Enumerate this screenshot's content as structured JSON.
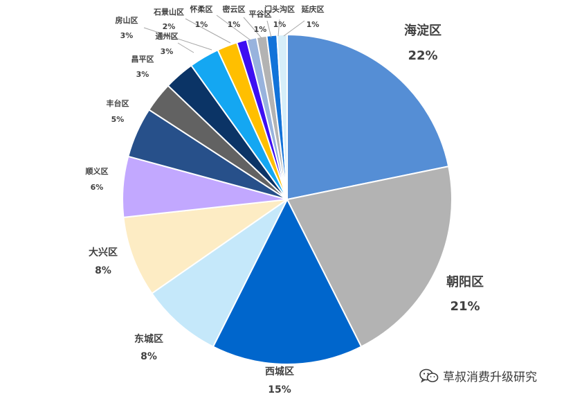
{
  "chart_data": {
    "type": "pie",
    "start_angle_deg": 0,
    "direction": "clockwise",
    "slices": [
      {
        "label": "海淀区",
        "value": 22,
        "pct_label": "22%",
        "color": "#558ed5"
      },
      {
        "label": "朝阳区",
        "value": 21,
        "pct_label": "21%",
        "color": "#b3b3b3"
      },
      {
        "label": "西城区",
        "value": 15,
        "pct_label": "15%",
        "color": "#0066cc"
      },
      {
        "label": "东城区",
        "value": 8,
        "pct_label": "8%",
        "color": "#c5e8fa"
      },
      {
        "label": "大兴区",
        "value": 8,
        "pct_label": "8%",
        "color": "#fdecc4"
      },
      {
        "label": "顺义区",
        "value": 6,
        "pct_label": "6%",
        "color": "#c2a8ff"
      },
      {
        "label": "丰台区",
        "value": 5,
        "pct_label": "5%",
        "color": "#27508a"
      },
      {
        "label": "昌平区",
        "value": 3,
        "pct_label": "3%",
        "color": "#626262"
      },
      {
        "label": "通州区",
        "value": 3,
        "pct_label": "3%",
        "color": "#0b3466"
      },
      {
        "label": "房山区",
        "value": 3,
        "pct_label": "3%",
        "color": "#14a7f2"
      },
      {
        "label": "石景山区",
        "value": 2,
        "pct_label": "2%",
        "color": "#ffbf00"
      },
      {
        "label": "怀柔区",
        "value": 1,
        "pct_label": "1%",
        "color": "#3d0ff2"
      },
      {
        "label": "密云区",
        "value": 1,
        "pct_label": "1%",
        "color": "#98b3dd"
      },
      {
        "label": "平谷区",
        "value": 1,
        "pct_label": "1%",
        "color": "#b3b3b3"
      },
      {
        "label": "门头沟区",
        "value": 1,
        "pct_label": "1%",
        "color": "#1273d9"
      },
      {
        "label": "延庆区",
        "value": 1,
        "pct_label": "1%",
        "color": "#d6eef9"
      }
    ]
  },
  "watermark": {
    "text": "草叔消费升级研究",
    "icon": "wechat-icon"
  }
}
